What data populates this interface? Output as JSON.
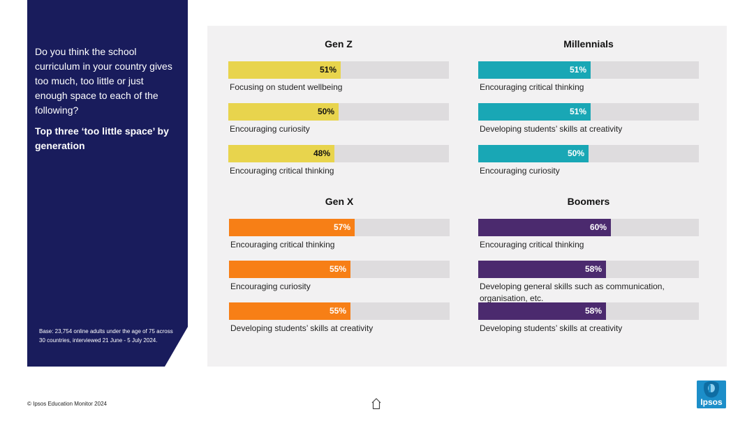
{
  "sidebar": {
    "question": "Do you think the school curriculum in  your country gives too much, too little or just enough space to each of the following?",
    "subheading": "Top three ‘too little space’ by generation",
    "base_note": "Base: 23,754 online adults under the age of 75 across 30 countries, interviewed 21 June - 5 July 2024."
  },
  "footer": {
    "copyright": "© Ipsos Education Monitor 2024",
    "logo_text": "Ipsos"
  },
  "colors": {
    "navy_panel": "#191c5c",
    "gen_z": "#e8d44d",
    "millennials": "#19a7b5",
    "gen_x": "#f77f16",
    "boomers": "#4b2a6e",
    "track": "#dedcde",
    "logo": "#1c8ec9"
  },
  "chart_data": [
    {
      "type": "bar",
      "orientation": "horizontal",
      "title": "Gen Z",
      "xlim": [
        0,
        100
      ],
      "categories": [
        "Focusing on student wellbeing",
        "Encouraging curiosity",
        "Encouraging critical thinking"
      ],
      "values": [
        51,
        50,
        48
      ],
      "value_labels": [
        "51%",
        "50%",
        "48%"
      ],
      "color": "#e8d44d"
    },
    {
      "type": "bar",
      "orientation": "horizontal",
      "title": "Millennials",
      "xlim": [
        0,
        100
      ],
      "categories": [
        "Encouraging critical thinking",
        "Developing students’ skills at creativity",
        "Encouraging curiosity"
      ],
      "values": [
        51,
        51,
        50
      ],
      "value_labels": [
        "51%",
        "51%",
        "50%"
      ],
      "color": "#19a7b5"
    },
    {
      "type": "bar",
      "orientation": "horizontal",
      "title": "Gen X",
      "xlim": [
        0,
        100
      ],
      "categories": [
        "Encouraging critical thinking",
        "Encouraging curiosity",
        "Developing students’ skills at creativity"
      ],
      "values": [
        57,
        55,
        55
      ],
      "value_labels": [
        "57%",
        "55%",
        "55%"
      ],
      "color": "#f77f16"
    },
    {
      "type": "bar",
      "orientation": "horizontal",
      "title": "Boomers",
      "xlim": [
        0,
        100
      ],
      "categories": [
        "Encouraging critical thinking",
        "Developing general skills such as communication, organisation, etc.",
        "Developing students’ skills at creativity"
      ],
      "values": [
        60,
        58,
        58
      ],
      "value_labels": [
        "60%",
        "58%",
        "58%"
      ],
      "color": "#4b2a6e"
    }
  ]
}
